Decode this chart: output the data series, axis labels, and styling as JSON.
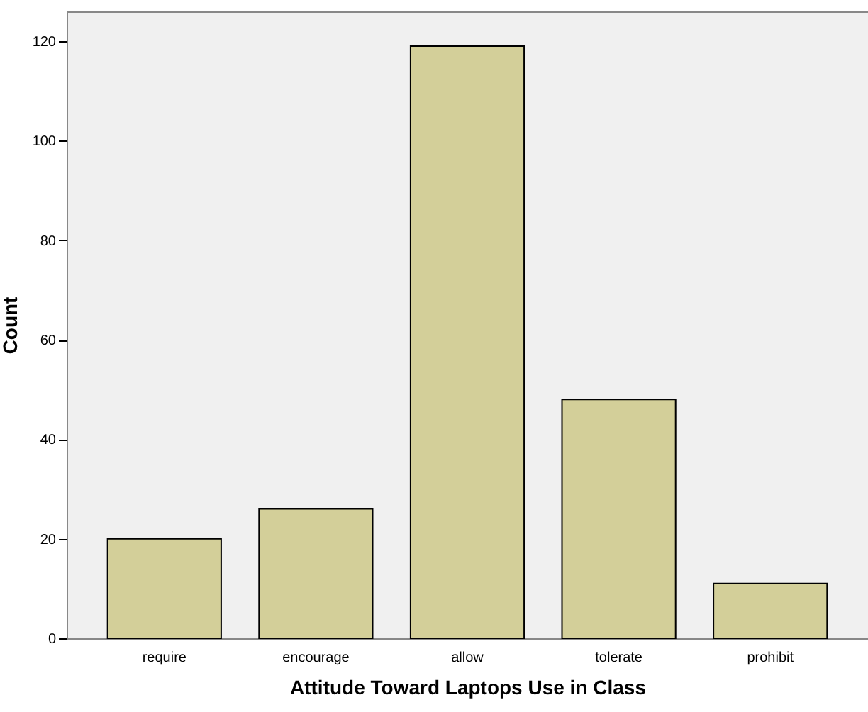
{
  "chart_data": {
    "type": "bar",
    "xlabel": "Attitude Toward Laptops Use in Class",
    "ylabel": "Count",
    "categories": [
      "require",
      "encourage",
      "allow",
      "tolerate",
      "prohibit"
    ],
    "values": [
      20,
      26,
      119,
      48,
      11
    ],
    "color": "#d3cf99",
    "ylim": [
      0,
      126
    ],
    "yticks": [
      0,
      20,
      40,
      60,
      80,
      100,
      120
    ],
    "grid": false
  }
}
